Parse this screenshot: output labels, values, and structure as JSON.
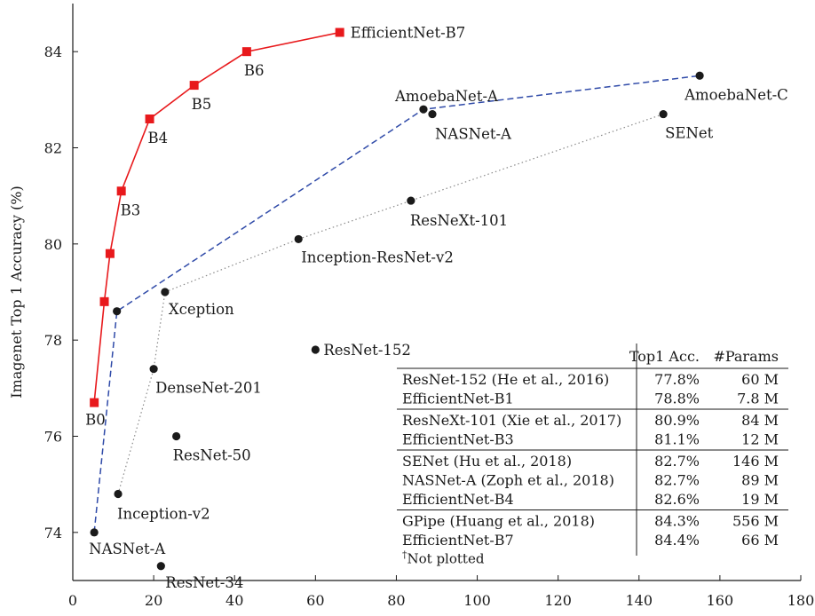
{
  "chart_data": {
    "type": "scatter",
    "title": "",
    "xlabel": "",
    "ylabel": "Imagenet Top 1 Accuracy (%)",
    "xlim": [
      0,
      180
    ],
    "ylim": [
      73,
      85
    ],
    "xticks": [
      0,
      20,
      40,
      60,
      80,
      100,
      120,
      140,
      160,
      180
    ],
    "yticks": [
      74,
      76,
      78,
      80,
      82,
      84
    ],
    "grid": false,
    "colors": {
      "efficientnet": "#e8191c",
      "other": "#1a1a1a",
      "frontier": "#2f4aa8"
    },
    "series": [
      {
        "name": "EfficientNet",
        "marker": "square",
        "connect": "solid",
        "points": [
          {
            "label": "B0",
            "x": 5.3,
            "y": 76.7
          },
          {
            "label": "",
            "x": 7.8,
            "y": 78.8
          },
          {
            "label": "",
            "x": 9.2,
            "y": 79.8
          },
          {
            "label": "B3",
            "x": 12,
            "y": 81.1
          },
          {
            "label": "B4",
            "x": 19,
            "y": 82.6
          },
          {
            "label": "B5",
            "x": 30,
            "y": 83.3
          },
          {
            "label": "B6",
            "x": 43,
            "y": 84.0
          },
          {
            "label": "EfficientNet-B7",
            "x": 66,
            "y": 84.4
          }
        ]
      },
      {
        "name": "",
        "marker": "circle",
        "points": [
          {
            "label": "NASNet-A",
            "x": 5.3,
            "y": 74.0
          },
          {
            "label": "ResNet-34",
            "x": 21.8,
            "y": 73.3
          },
          {
            "label": "Inception-v2",
            "x": 11.2,
            "y": 74.8
          },
          {
            "label": "ResNet-50",
            "x": 25.6,
            "y": 76.0
          },
          {
            "label": "DenseNet-201",
            "x": 20,
            "y": 77.4
          },
          {
            "label": "Xception",
            "x": 22.8,
            "y": 79.0
          },
          {
            "label": "",
            "x": 10.9,
            "y": 78.6
          },
          {
            "label": "ResNet-152",
            "x": 60,
            "y": 77.8
          },
          {
            "label": "Inception-ResNet-v2",
            "x": 55.8,
            "y": 80.1
          },
          {
            "label": "ResNeXt-101",
            "x": 83.6,
            "y": 80.9
          },
          {
            "label": "AmoebaNet-A",
            "x": 86.7,
            "y": 82.8
          },
          {
            "label": "NASNet-A",
            "x": 88.9,
            "y": 82.7
          },
          {
            "label": "SENet",
            "x": 146,
            "y": 82.7
          },
          {
            "label": "AmoebaNet-C",
            "x": 155,
            "y": 83.5
          }
        ]
      }
    ],
    "frontier_dashed": [
      {
        "x": 5.3,
        "y": 74.0
      },
      {
        "x": 10.9,
        "y": 78.6
      },
      {
        "x": 86.7,
        "y": 82.8
      },
      {
        "x": 155,
        "y": 83.5
      }
    ],
    "frontier_dotted": [
      {
        "x": 11.2,
        "y": 74.8
      },
      {
        "x": 20,
        "y": 77.4
      },
      {
        "x": 22.8,
        "y": 79.0
      },
      {
        "x": 55.8,
        "y": 80.1
      },
      {
        "x": 83.6,
        "y": 80.9
      },
      {
        "x": 146,
        "y": 82.7
      }
    ],
    "table": {
      "headers": [
        "",
        "Top1 Acc.",
        "#Params"
      ],
      "groups": [
        [
          {
            "model": "ResNet-152 (He et al., 2016)",
            "acc": "77.8%",
            "params": "60 M"
          },
          {
            "model": "EfficientNet-B1",
            "acc": "78.8%",
            "params": "7.8 M"
          }
        ],
        [
          {
            "model": "ResNeXt-101 (Xie et al., 2017)",
            "acc": "80.9%",
            "params": "84 M"
          },
          {
            "model": "EfficientNet-B3",
            "acc": "81.1%",
            "params": "12 M"
          }
        ],
        [
          {
            "model": "SENet (Hu et al., 2018)",
            "acc": "82.7%",
            "params": "146 M"
          },
          {
            "model": "NASNet-A (Zoph et al., 2018)",
            "acc": "82.7%",
            "params": "89 M"
          },
          {
            "model": "EfficientNet-B4",
            "acc": "82.6%",
            "params": "19 M"
          }
        ],
        [
          {
            "model": "GPipe (Huang et al., 2018)",
            "acc": "84.3%",
            "params": "556 M"
          },
          {
            "model": "EfficientNet-B7",
            "acc": "84.4%",
            "params": "66 M"
          }
        ]
      ],
      "footnote_mark": "†",
      "footnote": "Not plotted"
    }
  }
}
